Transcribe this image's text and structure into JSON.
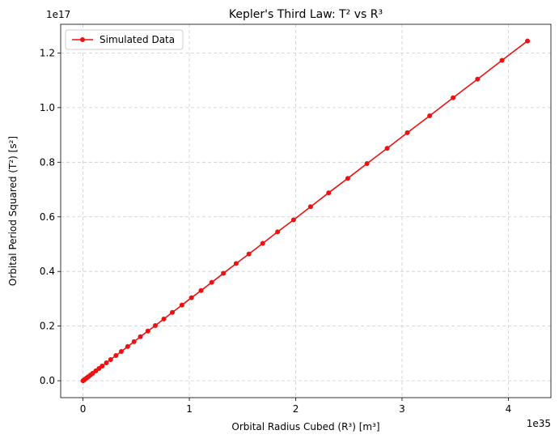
{
  "chart_data": {
    "type": "line",
    "title": "Kepler's Third Law: T² vs R³",
    "xlabel": "Orbital Radius Cubed (R³) [m³]",
    "ylabel": "Orbital Period Squared (T²) [s²]",
    "x_offset_label": "1e35",
    "y_offset_label": "1e17",
    "x_scale_exponent": 35,
    "y_scale_exponent": 17,
    "xlim": [
      -0.21,
      4.4
    ],
    "ylim": [
      -0.062,
      1.305
    ],
    "x_ticks": [
      0,
      1,
      2,
      3,
      4
    ],
    "x_tick_labels": [
      "0",
      "1",
      "2",
      "3",
      "4"
    ],
    "y_ticks": [
      0.0,
      0.2,
      0.4,
      0.6,
      0.8,
      1.0,
      1.2
    ],
    "y_tick_labels": [
      "0.0",
      "0.2",
      "0.4",
      "0.6",
      "0.8",
      "1.0",
      "1.2"
    ],
    "grid": true,
    "legend_position": "top-left",
    "line_color": "#ee1111",
    "marker": "circle",
    "series": [
      {
        "name": "Simulated Data",
        "x": [
          0.0,
          0.005,
          0.01,
          0.02,
          0.035,
          0.05,
          0.07,
          0.09,
          0.12,
          0.15,
          0.18,
          0.22,
          0.26,
          0.31,
          0.36,
          0.42,
          0.48,
          0.54,
          0.61,
          0.68,
          0.76,
          0.84,
          0.93,
          1.02,
          1.11,
          1.21,
          1.32,
          1.44,
          1.56,
          1.69,
          1.83,
          1.98,
          2.14,
          2.31,
          2.49,
          2.67,
          2.86,
          3.05,
          3.26,
          3.48,
          3.71,
          3.94,
          4.18
        ],
        "y": [
          0.0,
          0.0015,
          0.003,
          0.006,
          0.0104,
          0.0149,
          0.0208,
          0.0268,
          0.0357,
          0.0446,
          0.0536,
          0.0655,
          0.0774,
          0.0923,
          0.107,
          0.125,
          0.143,
          0.161,
          0.182,
          0.202,
          0.226,
          0.25,
          0.277,
          0.304,
          0.33,
          0.36,
          0.393,
          0.429,
          0.464,
          0.503,
          0.545,
          0.589,
          0.637,
          0.688,
          0.741,
          0.795,
          0.851,
          0.908,
          0.97,
          1.036,
          1.104,
          1.173,
          1.244
        ]
      }
    ]
  }
}
